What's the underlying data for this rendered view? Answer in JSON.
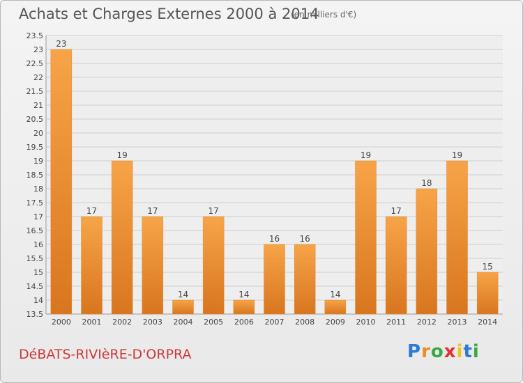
{
  "chart_data": {
    "type": "bar",
    "title": "Achats et Charges Externes 2000 à 2014",
    "subtitle": "(en milliers d'€)",
    "categories": [
      "2000",
      "2001",
      "2002",
      "2003",
      "2004",
      "2005",
      "2006",
      "2007",
      "2008",
      "2009",
      "2010",
      "2011",
      "2012",
      "2013",
      "2014"
    ],
    "values": [
      23,
      17,
      19,
      17,
      14,
      17,
      14,
      16,
      16,
      14,
      19,
      17,
      18,
      19,
      15
    ],
    "data_labels": [
      "23",
      "17",
      "19",
      "17",
      "14",
      "17",
      "14",
      "16",
      "16",
      "14",
      "19",
      "17",
      "18",
      "19",
      "15"
    ],
    "yticks": [
      "13.5",
      "14",
      "14.5",
      "15",
      "15.5",
      "16",
      "16.5",
      "17",
      "17.5",
      "18",
      "18.5",
      "19",
      "19.5",
      "20",
      "20.5",
      "21",
      "21.5",
      "22",
      "22.5",
      "23",
      "23.5"
    ],
    "ylim": [
      13.5,
      23.5
    ],
    "grid": true,
    "bar_color": "#f0a044",
    "xlabel": "",
    "ylabel": ""
  },
  "footer": {
    "place": "DéBATS-RIVIèRE-D'ORPRA",
    "logo_letters": [
      {
        "ch": "P",
        "color": "#2b7bd6"
      },
      {
        "ch": "r",
        "color": "#f08a1c"
      },
      {
        "ch": "o",
        "color": "#39a845"
      },
      {
        "ch": "x",
        "color": "#e8302f"
      },
      {
        "ch": "i",
        "color": "#f0c419"
      },
      {
        "ch": "t",
        "color": "#2b7bd6"
      },
      {
        "ch": "i",
        "color": "#39a845"
      }
    ]
  }
}
